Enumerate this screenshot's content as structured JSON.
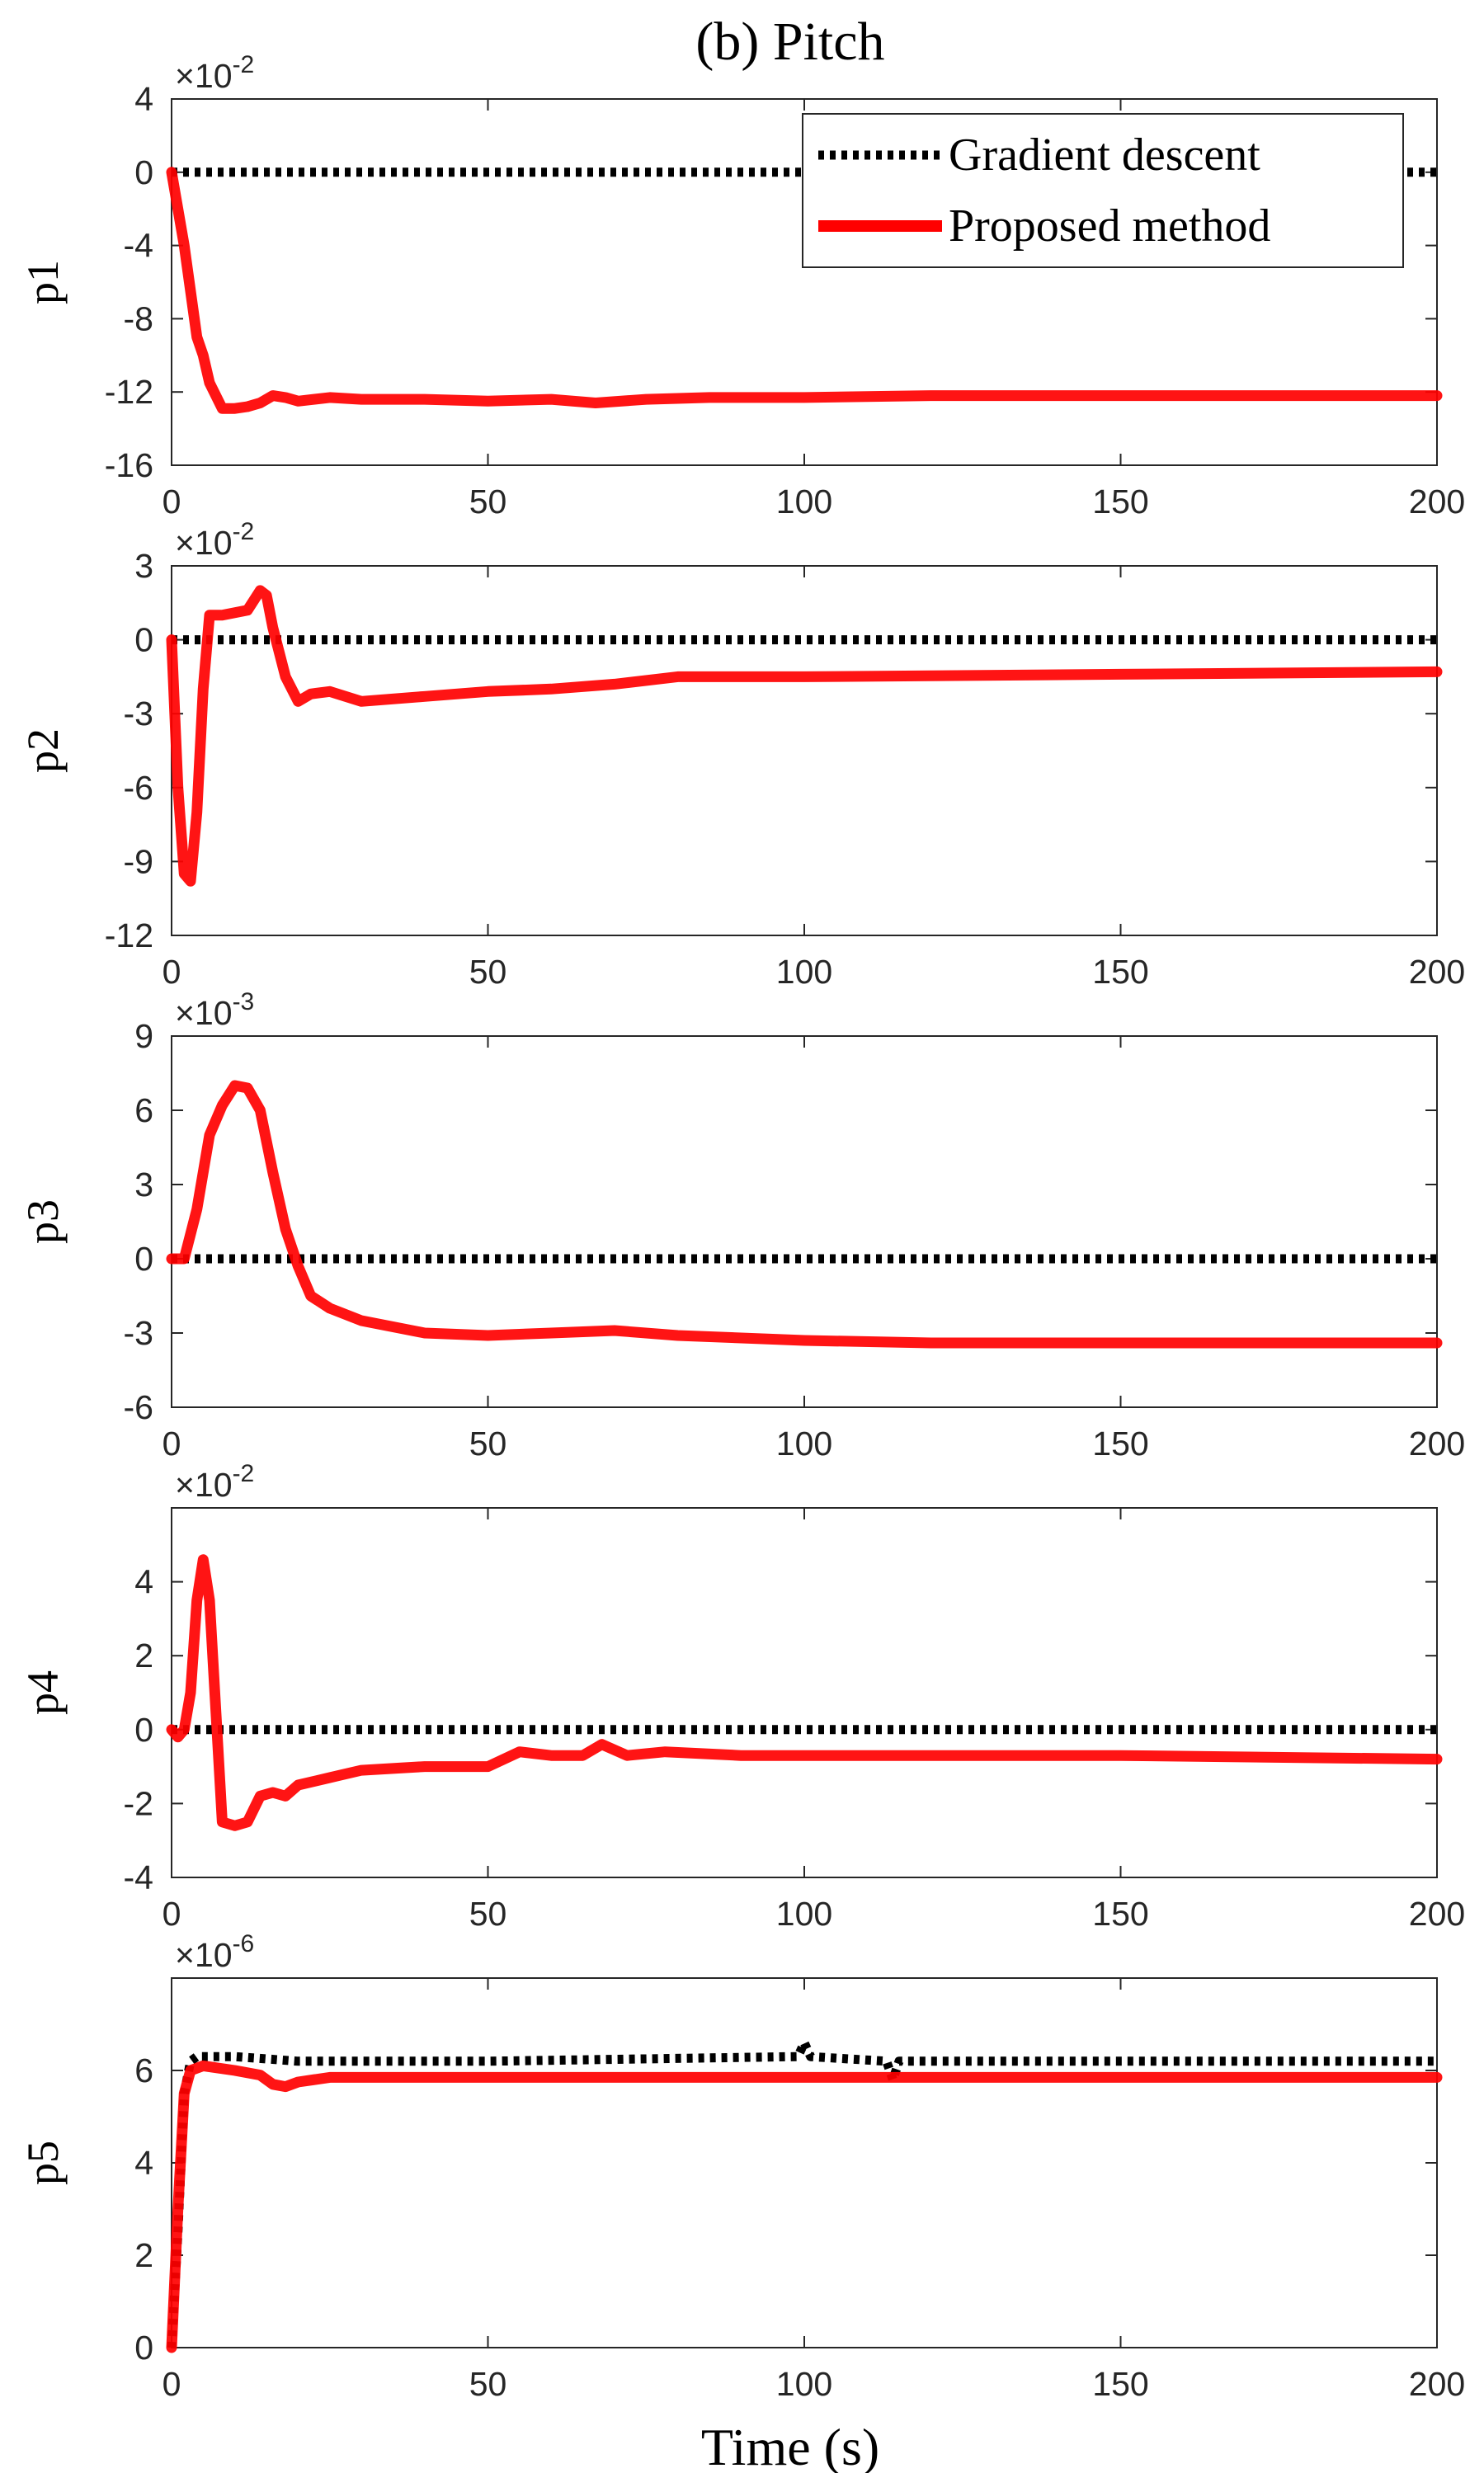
{
  "figure_title": "(b) Pitch",
  "xlabel": "Time (s)",
  "legend": {
    "entries": [
      "Gradient descent",
      "Proposed method"
    ]
  },
  "colors": {
    "gradient_descent": "#000000",
    "proposed_method": "#ff0000",
    "grid": "#dcdcdc",
    "axes": "#262626"
  },
  "chart_data": [
    {
      "type": "line",
      "title": "(b) Pitch",
      "xlabel": "",
      "ylabel": "p1",
      "exponent": "×10^-2",
      "xlim": [
        0,
        200
      ],
      "ylim": [
        -16,
        4
      ],
      "xticks": [
        0,
        50,
        100,
        150,
        200
      ],
      "yticks": [
        4,
        0,
        -4,
        -8,
        -12,
        -16
      ],
      "grid": true,
      "legend_position": "top-right",
      "series": [
        {
          "name": "Gradient descent",
          "style": "dotted",
          "x": [
            0,
            200
          ],
          "y": [
            0,
            0
          ]
        },
        {
          "name": "Proposed method",
          "style": "solid",
          "x": [
            0,
            2,
            4,
            5,
            6,
            8,
            10,
            12,
            14,
            16,
            18,
            20,
            25,
            30,
            40,
            50,
            60,
            67,
            75,
            85,
            100,
            120,
            150,
            200
          ],
          "y": [
            0,
            -4,
            -9,
            -10,
            -11.5,
            -12.9,
            -12.9,
            -12.8,
            -12.6,
            -12.2,
            -12.3,
            -12.5,
            -12.3,
            -12.4,
            -12.4,
            -12.5,
            -12.4,
            -12.6,
            -12.4,
            -12.3,
            -12.3,
            -12.2,
            -12.2,
            -12.2
          ]
        }
      ]
    },
    {
      "type": "line",
      "xlabel": "",
      "ylabel": "p2",
      "exponent": "×10^-2",
      "xlim": [
        0,
        200
      ],
      "ylim": [
        -12,
        3
      ],
      "xticks": [
        0,
        50,
        100,
        150,
        200
      ],
      "yticks": [
        3,
        0,
        -3,
        -6,
        -9,
        -12
      ],
      "grid": true,
      "series": [
        {
          "name": "Gradient descent",
          "style": "dotted",
          "x": [
            0,
            200
          ],
          "y": [
            0,
            0
          ]
        },
        {
          "name": "Proposed method",
          "style": "solid",
          "x": [
            0,
            1,
            2,
            3,
            4,
            5,
            6,
            8,
            10,
            12,
            14,
            15,
            16,
            18,
            20,
            22,
            25,
            30,
            40,
            50,
            60,
            70,
            80,
            100,
            150,
            200
          ],
          "y": [
            0,
            -6,
            -9.5,
            -9.8,
            -7,
            -2,
            1,
            1,
            1.1,
            1.2,
            2,
            1.8,
            0.5,
            -1.5,
            -2.5,
            -2.2,
            -2.1,
            -2.5,
            -2.3,
            -2.1,
            -2,
            -1.8,
            -1.5,
            -1.5,
            -1.4,
            -1.3
          ]
        }
      ]
    },
    {
      "type": "line",
      "xlabel": "",
      "ylabel": "p3",
      "exponent": "×10^-3",
      "xlim": [
        0,
        200
      ],
      "ylim": [
        -6,
        9
      ],
      "xticks": [
        0,
        50,
        100,
        150,
        200
      ],
      "yticks": [
        9,
        6,
        3,
        0,
        -3,
        -6
      ],
      "grid": true,
      "series": [
        {
          "name": "Gradient descent",
          "style": "dotted",
          "x": [
            0,
            200
          ],
          "y": [
            0,
            0
          ]
        },
        {
          "name": "Proposed method",
          "style": "solid",
          "x": [
            0,
            2,
            4,
            6,
            8,
            10,
            12,
            14,
            16,
            18,
            20,
            22,
            25,
            30,
            40,
            50,
            60,
            70,
            80,
            100,
            120,
            150,
            200
          ],
          "y": [
            0,
            0,
            2,
            5,
            6.2,
            7,
            6.9,
            6,
            3.5,
            1.2,
            -0.3,
            -1.5,
            -2,
            -2.5,
            -3,
            -3.1,
            -3,
            -2.9,
            -3.1,
            -3.3,
            -3.4,
            -3.4,
            -3.4
          ]
        }
      ]
    },
    {
      "type": "line",
      "xlabel": "",
      "ylabel": "p4",
      "exponent": "×10^-2",
      "xlim": [
        0,
        200
      ],
      "ylim": [
        -4,
        6
      ],
      "xticks": [
        0,
        50,
        100,
        150,
        200
      ],
      "yticks": [
        4,
        2,
        0,
        -2,
        -4
      ],
      "grid": true,
      "series": [
        {
          "name": "Gradient descent",
          "style": "dotted",
          "x": [
            0,
            200
          ],
          "y": [
            0,
            0
          ]
        },
        {
          "name": "Proposed method",
          "style": "solid",
          "x": [
            0,
            1,
            2,
            3,
            4,
            5,
            6,
            7,
            8,
            10,
            12,
            14,
            16,
            18,
            20,
            25,
            30,
            40,
            50,
            55,
            60,
            65,
            68,
            72,
            78,
            90,
            100,
            150,
            200
          ],
          "y": [
            0,
            -0.2,
            0,
            1,
            3.5,
            4.6,
            3.5,
            0.5,
            -2.5,
            -2.6,
            -2.5,
            -1.8,
            -1.7,
            -1.8,
            -1.5,
            -1.3,
            -1.1,
            -1,
            -1,
            -0.6,
            -0.7,
            -0.7,
            -0.4,
            -0.7,
            -0.6,
            -0.7,
            -0.7,
            -0.7,
            -0.8
          ]
        }
      ]
    },
    {
      "type": "line",
      "xlabel": "Time (s)",
      "ylabel": "p5",
      "exponent": "×10^-6",
      "xlim": [
        0,
        200
      ],
      "ylim": [
        0,
        8
      ],
      "xticks": [
        0,
        50,
        100,
        150,
        200
      ],
      "yticks": [
        6,
        4,
        2,
        0
      ],
      "grid": true,
      "series": [
        {
          "name": "Gradient descent",
          "style": "dotted",
          "x": [
            0,
            1,
            2,
            3,
            4,
            10,
            20,
            35,
            50,
            99,
            100,
            101,
            113,
            114,
            115,
            150,
            200
          ],
          "y": [
            0,
            2.5,
            5.5,
            6.2,
            6.3,
            6.3,
            6.2,
            6.2,
            6.2,
            6.3,
            6.6,
            6.3,
            6.2,
            5.8,
            6.2,
            6.2,
            6.2
          ]
        },
        {
          "name": "Proposed method",
          "style": "solid",
          "x": [
            0,
            1,
            2,
            3,
            5,
            10,
            14,
            16,
            18,
            20,
            25,
            30,
            50,
            100,
            150,
            200
          ],
          "y": [
            0,
            3,
            5.5,
            6,
            6.1,
            6,
            5.9,
            5.7,
            5.65,
            5.75,
            5.85,
            5.85,
            5.85,
            5.85,
            5.85,
            5.85
          ]
        }
      ]
    }
  ]
}
